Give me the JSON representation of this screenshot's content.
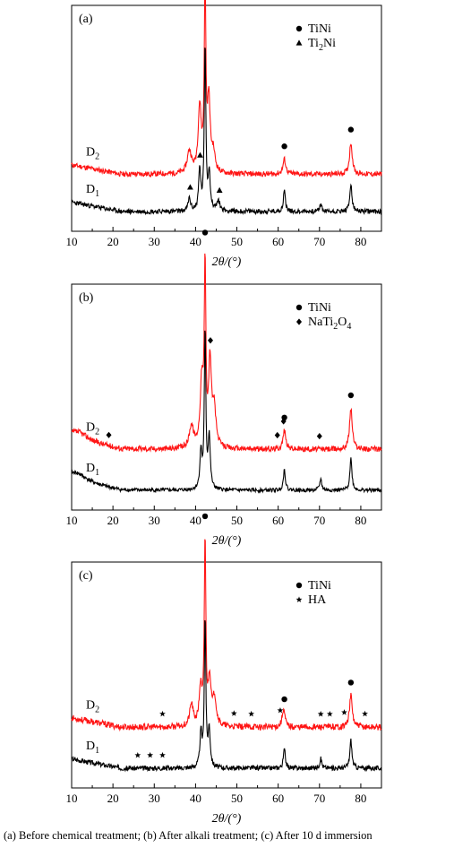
{
  "caption": "(a)  Before  chemical  treatment;  (b)  After  alkali  treatment; (c) After 10 d immersion",
  "markers": {
    "circle": "●",
    "triangle": "▲",
    "diamond": "◆",
    "star": "★"
  },
  "colors": {
    "d2": "#ff1414",
    "d1": "#000000"
  },
  "chart_data": [
    {
      "type": "line",
      "panel_label": "(a)",
      "xlabel": "2θ/(°)",
      "xlim": [
        10,
        85
      ],
      "x_ticks": [
        10,
        20,
        30,
        40,
        50,
        60,
        70,
        80
      ],
      "grid": false,
      "legend": {
        "placement": "top-right",
        "entries": [
          {
            "marker": "circle",
            "label": "TiNi"
          },
          {
            "marker": "triangle",
            "label": "Ti",
            "sub": "2",
            "tail": "Ni"
          }
        ]
      },
      "series": [
        {
          "name": "D",
          "sub": "2",
          "color": "#ff1414",
          "baseline": 0.2,
          "noise": 0.028,
          "seed": 11,
          "peaks": [
            [
              38.5,
              0.12,
              0.6
            ],
            [
              41.0,
              0.35,
              0.45
            ],
            [
              42.3,
              1.0,
              0.22
            ],
            [
              43.2,
              0.38,
              0.4
            ],
            [
              44.3,
              0.1,
              0.5
            ],
            [
              61.5,
              0.08,
              0.4
            ],
            [
              77.6,
              0.17,
              0.4
            ]
          ],
          "markers": [
            {
              "x": 42.3,
              "symbol": "circle"
            },
            {
              "x": 61.5,
              "symbol": "circle"
            },
            {
              "x": 77.6,
              "symbol": "circle"
            }
          ]
        },
        {
          "name": "D",
          "sub": "1",
          "color": "#000000",
          "baseline": 0.0,
          "noise": 0.026,
          "seed": 23,
          "peaks": [
            [
              38.5,
              0.07,
              0.35
            ],
            [
              41.0,
              0.22,
              0.3
            ],
            [
              42.3,
              0.9,
              0.22
            ],
            [
              43.3,
              0.2,
              0.3
            ],
            [
              45.5,
              0.05,
              0.5
            ],
            [
              61.5,
              0.11,
              0.3
            ],
            [
              70.3,
              0.04,
              0.3
            ],
            [
              77.6,
              0.15,
              0.3
            ]
          ],
          "markers": [
            {
              "x": 38.7,
              "symbol": "triangle"
            },
            {
              "x": 41.1,
              "symbol": "triangle"
            },
            {
              "x": 45.8,
              "symbol": "triangle"
            }
          ]
        }
      ]
    },
    {
      "type": "line",
      "panel_label": "(b)",
      "xlabel": "2θ/(°)",
      "xlim": [
        10,
        85
      ],
      "x_ticks": [
        10,
        20,
        30,
        40,
        50,
        60,
        70,
        80
      ],
      "grid": false,
      "legend": {
        "placement": "top-right",
        "entries": [
          {
            "marker": "circle",
            "label": "TiNi"
          },
          {
            "marker": "diamond",
            "label": "NaTi",
            "sub": "2",
            "tail": "O",
            "sub2": "4"
          }
        ]
      },
      "series": [
        {
          "name": "D",
          "sub": "2",
          "color": "#ff1414",
          "baseline": 0.22,
          "noise": 0.03,
          "seed": 37,
          "peaks": [
            [
              11.5,
              0.05,
              3.0
            ],
            [
              39.0,
              0.12,
              0.6
            ],
            [
              41.5,
              0.35,
              0.45
            ],
            [
              42.3,
              0.95,
              0.22
            ],
            [
              43.5,
              0.45,
              0.4
            ],
            [
              44.5,
              0.2,
              0.5
            ],
            [
              61.5,
              0.1,
              0.4
            ],
            [
              77.6,
              0.22,
              0.4
            ]
          ],
          "markers": [
            {
              "x": 42.3,
              "symbol": "circle"
            },
            {
              "x": 61.5,
              "symbol": "circle"
            },
            {
              "x": 77.6,
              "symbol": "circle"
            },
            {
              "x": 19.0,
              "symbol": "diamond"
            },
            {
              "x": 43.6,
              "symbol": "diamond"
            },
            {
              "x": 59.8,
              "symbol": "diamond"
            },
            {
              "x": 61.3,
              "symbol": "diamond"
            },
            {
              "x": 70.0,
              "symbol": "diamond"
            }
          ]
        },
        {
          "name": "D",
          "sub": "1",
          "color": "#000000",
          "baseline": 0.0,
          "noise": 0.02,
          "seed": 41,
          "peaks": [
            [
              11.0,
              0.05,
              3.0
            ],
            [
              41.3,
              0.2,
              0.3
            ],
            [
              42.3,
              0.85,
              0.22
            ],
            [
              43.3,
              0.28,
              0.3
            ],
            [
              61.5,
              0.11,
              0.3
            ],
            [
              70.3,
              0.06,
              0.3
            ],
            [
              77.6,
              0.17,
              0.3
            ]
          ],
          "markers": []
        }
      ]
    },
    {
      "type": "line",
      "panel_label": "(c)",
      "xlabel": "2θ/(°)",
      "xlim": [
        10,
        85
      ],
      "x_ticks": [
        10,
        20,
        30,
        40,
        50,
        60,
        70,
        80
      ],
      "grid": false,
      "legend": {
        "placement": "top-right",
        "entries": [
          {
            "marker": "circle",
            "label": "TiNi"
          },
          {
            "marker": "star",
            "label": "HA"
          }
        ]
      },
      "series": [
        {
          "name": "D",
          "sub": "2",
          "color": "#ff1414",
          "baseline": 0.22,
          "noise": 0.034,
          "seed": 53,
          "peaks": [
            [
              39.0,
              0.12,
              0.5
            ],
            [
              41.2,
              0.2,
              0.4
            ],
            [
              42.3,
              1.0,
              0.22
            ],
            [
              43.4,
              0.25,
              0.4
            ],
            [
              44.6,
              0.15,
              0.5
            ],
            [
              61.3,
              0.1,
              0.4
            ],
            [
              77.6,
              0.17,
              0.4
            ]
          ],
          "markers": [
            {
              "x": 42.3,
              "symbol": "circle"
            },
            {
              "x": 61.5,
              "symbol": "circle"
            },
            {
              "x": 77.6,
              "symbol": "circle"
            },
            {
              "x": 32.0,
              "symbol": "star"
            },
            {
              "x": 49.3,
              "symbol": "star"
            },
            {
              "x": 53.5,
              "symbol": "star"
            },
            {
              "x": 60.5,
              "symbol": "star"
            },
            {
              "x": 70.3,
              "symbol": "star"
            },
            {
              "x": 72.5,
              "symbol": "star"
            },
            {
              "x": 76.0,
              "symbol": "star"
            },
            {
              "x": 81.0,
              "symbol": "star"
            }
          ]
        },
        {
          "name": "D",
          "sub": "1",
          "color": "#000000",
          "baseline": 0.0,
          "noise": 0.026,
          "seed": 67,
          "peaks": [
            [
              41.3,
              0.18,
              0.3
            ],
            [
              42.3,
              0.8,
              0.22
            ],
            [
              43.3,
              0.2,
              0.3
            ],
            [
              61.5,
              0.1,
              0.3
            ],
            [
              70.3,
              0.05,
              0.3
            ],
            [
              77.6,
              0.15,
              0.3
            ]
          ],
          "markers": [
            {
              "x": 26.0,
              "symbol": "star"
            },
            {
              "x": 29.0,
              "symbol": "star"
            },
            {
              "x": 32.0,
              "symbol": "star"
            }
          ]
        }
      ]
    }
  ]
}
